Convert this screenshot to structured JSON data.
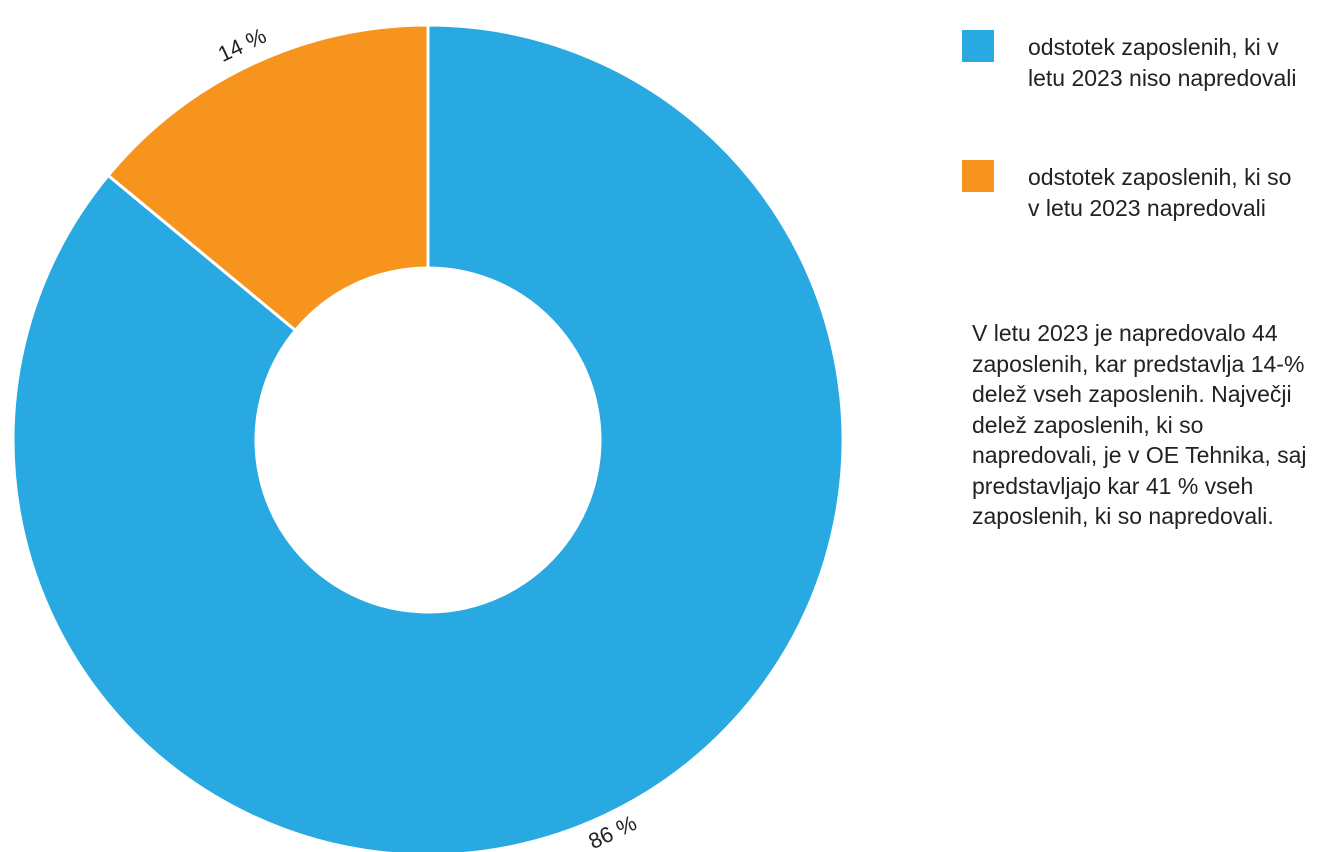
{
  "chart_data": {
    "type": "pie",
    "variant": "donut",
    "title": "",
    "categories": [
      "odstotek zaposlenih, ki v letu 2023 niso napredovali",
      "odstotek zaposlenih, ki so v letu 2023 napredovali"
    ],
    "values": [
      86,
      14
    ],
    "value_labels": [
      "86 %",
      "14 %"
    ],
    "colors": [
      "#29a9e1",
      "#f7941d"
    ],
    "legend_position": "right"
  },
  "legend": {
    "items": [
      {
        "label": "odstotek zaposlenih, ki v letu 2023 niso napredovali",
        "color": "#29a9e1"
      },
      {
        "label": "odstotek zaposlenih, ki so v letu 2023 napredovali",
        "color": "#f7941d"
      }
    ]
  },
  "note": {
    "text": "V letu 2023 je napredovalo 44 zaposlenih, kar predstavlja 14-% delež vseh zaposlenih. Največji delež zaposlenih, ki so napredovali, je v OE Tehnika, saj predstavljajo kar 41 % vseh zaposlenih, ki so napredovali."
  }
}
